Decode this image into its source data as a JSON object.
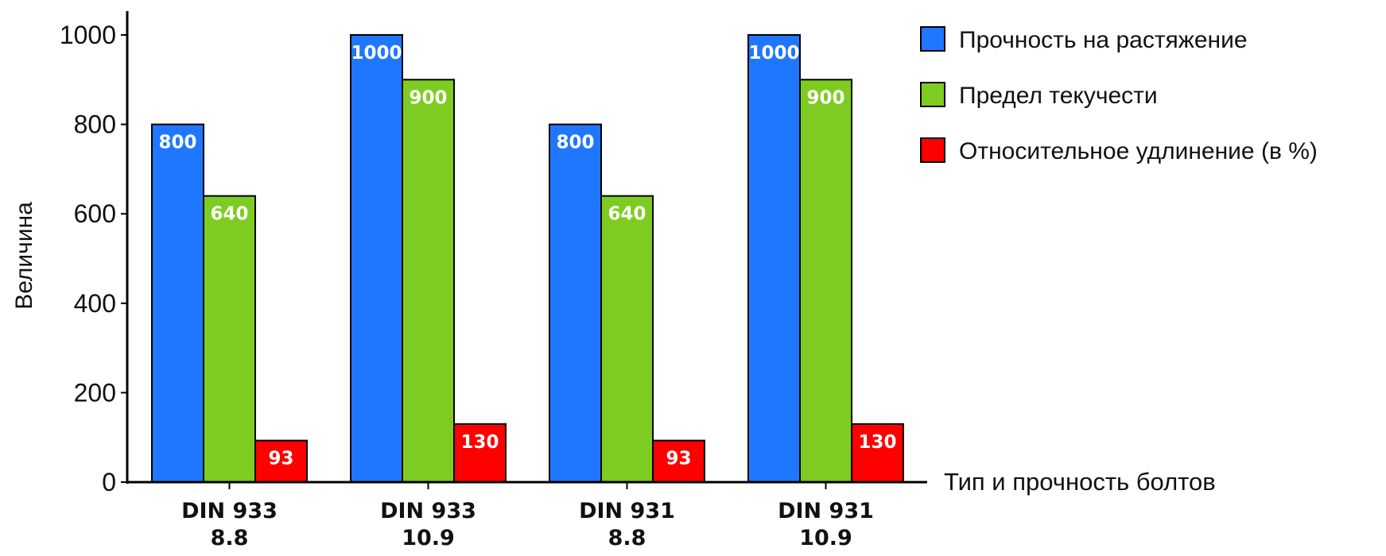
{
  "chart_data": {
    "type": "bar",
    "title": "",
    "xlabel": "Тип и прочность болтов",
    "ylabel": "Величина",
    "ylim": [
      0,
      1000
    ],
    "yticks": [
      0,
      200,
      400,
      600,
      800,
      1000
    ],
    "ytick_labels": [
      "0",
      "200",
      "400",
      "600",
      "800",
      "1000"
    ],
    "categories": [
      {
        "line1": "DIN 933",
        "line2": "8.8"
      },
      {
        "line1": "DIN 933",
        "line2": "10.9"
      },
      {
        "line1": "DIN 931",
        "line2": "8.8"
      },
      {
        "line1": "DIN 931",
        "line2": "10.9"
      }
    ],
    "series": [
      {
        "name": "Прочность на растяжение",
        "color": "#1f77ff",
        "values": [
          800,
          1000,
          800,
          1000
        ],
        "labels": [
          "800",
          "1000",
          "800",
          "1000"
        ]
      },
      {
        "name": "Предел текучести",
        "color": "#7ecc21",
        "values": [
          640,
          900,
          640,
          900
        ],
        "labels": [
          "640",
          "900",
          "640",
          "900"
        ]
      },
      {
        "name": "Относительное удлинение (в %)",
        "color": "#ff0000",
        "values": [
          93,
          130,
          93,
          130
        ],
        "labels": [
          "93",
          "130",
          "93",
          "130"
        ]
      }
    ],
    "legend_position": "top-right",
    "grid": false
  }
}
